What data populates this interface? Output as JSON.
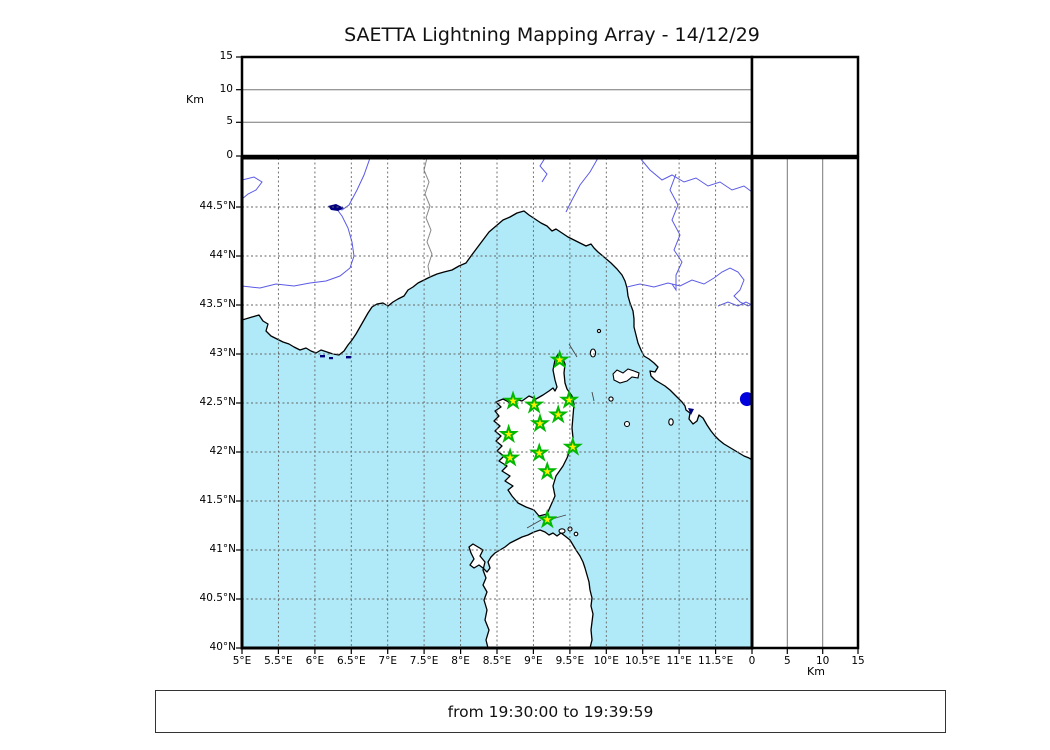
{
  "title": "SAETTA Lightning Mapping Array - 14/12/29",
  "footer": {
    "time_range": "from 19:30:00 to 19:39:59"
  },
  "axes": {
    "lon_ticks": [
      "5°E",
      "5.5°E",
      "6°E",
      "6.5°E",
      "7°E",
      "7.5°E",
      "8°E",
      "8.5°E",
      "9°E",
      "9.5°E",
      "10°E",
      "10.5°E",
      "11°E",
      "11.5°E"
    ],
    "lat_ticks": [
      "44.5°N",
      "44°N",
      "43.5°N",
      "43°N",
      "42.5°N",
      "42°N",
      "41.5°N",
      "41°N",
      "40.5°N",
      "40°N"
    ],
    "alt_ticks_left": [
      "15",
      "10",
      "5",
      "0"
    ],
    "alt_ticks_bottom": [
      "0",
      "5",
      "10",
      "15"
    ],
    "alt_unit_left": "Km",
    "alt_unit_right": "Km",
    "lon_range": [
      5,
      12
    ],
    "lat_range": [
      40,
      45
    ],
    "alt_range_km": [
      0,
      15
    ]
  },
  "colors": {
    "sea": "#b0eaf8",
    "land": "#ffffff",
    "coast": "#000000",
    "river": "#5a5ae6",
    "lake": "#000080",
    "grid": "#666666",
    "panel_grid": "#777777",
    "station_fill": "#ffef00",
    "station_edge": "#00b800",
    "source_dot": "#0000dd"
  },
  "stations": [
    {
      "lon": 9.36,
      "lat": 42.94
    },
    {
      "lon": 8.72,
      "lat": 42.52
    },
    {
      "lon": 9.01,
      "lat": 42.48
    },
    {
      "lon": 9.49,
      "lat": 42.53
    },
    {
      "lon": 9.34,
      "lat": 42.38
    },
    {
      "lon": 9.09,
      "lat": 42.29
    },
    {
      "lon": 8.66,
      "lat": 42.18
    },
    {
      "lon": 9.54,
      "lat": 42.05
    },
    {
      "lon": 9.08,
      "lat": 41.99
    },
    {
      "lon": 8.68,
      "lat": 41.94
    },
    {
      "lon": 9.19,
      "lat": 41.8
    },
    {
      "lon": 9.19,
      "lat": 41.31
    }
  ],
  "lightning_source": {
    "lon": 11.93,
    "lat": 42.54
  }
}
